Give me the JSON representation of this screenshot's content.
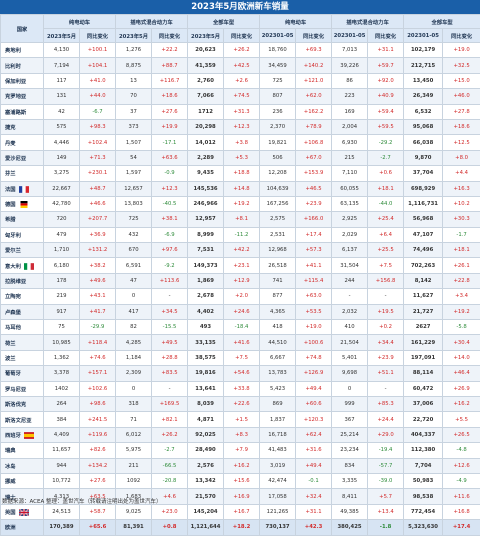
{
  "title": "2023年5月欧洲新车销量",
  "header": {
    "country_label": "国家",
    "groups": [
      "纯电动车",
      "插电式混合动力车",
      "全部车型",
      "纯电动车",
      "插电式混合动力车",
      "全部车型"
    ],
    "subs": [
      "2023年5月",
      "同比变化",
      "2023年5月",
      "同比变化",
      "2023年5月",
      "同比变化",
      "202301-05",
      "同比变化",
      "202301-05",
      "同比变化",
      "202301-05",
      "同比变化"
    ]
  },
  "colors": {
    "title_bg": "#1a5fa8",
    "increase": "#d22a2a",
    "decrease": "#2e8b3a"
  },
  "rows": [
    {
      "country": "奥地利",
      "c": [
        "4,130",
        "+100.1",
        "1,276",
        "+22.2",
        "20,623",
        "+26.2",
        "18,760",
        "+69.3",
        "7,013",
        "+31.1",
        "102,179",
        "+19.0"
      ]
    },
    {
      "country": "比利时",
      "c": [
        "7,194",
        "+104.1",
        "8,875",
        "+88.7",
        "41,359",
        "+42.5",
        "34,459",
        "+140.2",
        "39,226",
        "+59.7",
        "212,715",
        "+32.5"
      ]
    },
    {
      "country": "保加利亚",
      "c": [
        "117",
        "+41.0",
        "13",
        "+116.7",
        "2,760",
        "+2.6",
        "725",
        "+121.0",
        "86",
        "+92.0",
        "13,450",
        "+15.0"
      ]
    },
    {
      "country": "克罗地亚",
      "c": [
        "131",
        "+44.0",
        "70",
        "+18.6",
        "7,066",
        "+74.5",
        "807",
        "+62.0",
        "223",
        "+40.9",
        "26,349",
        "+46.0"
      ]
    },
    {
      "country": "塞浦路斯",
      "c": [
        "42",
        "-6.7",
        "37",
        "+27.6",
        "1712",
        "+31.3",
        "236",
        "+162.2",
        "169",
        "+59.4",
        "6,532",
        "+27.8"
      ]
    },
    {
      "country": "捷克",
      "c": [
        "575",
        "+98.3",
        "373",
        "+19.9",
        "20,298",
        "+12.3",
        "2,370",
        "+78.9",
        "2,004",
        "+59.5",
        "95,068",
        "+18.6"
      ]
    },
    {
      "country": "丹麦",
      "c": [
        "4,446",
        "+102.4",
        "1,507",
        "-17.1",
        "14,012",
        "+3.8",
        "19,821",
        "+106.8",
        "6,930",
        "-29.2",
        "66,038",
        "+12.5"
      ]
    },
    {
      "country": "爱沙尼亚",
      "c": [
        "149",
        "+71.3",
        "54",
        "+63.6",
        "2,289",
        "+5.3",
        "506",
        "+67.0",
        "215",
        "-2.7",
        "9,870",
        "+8.0"
      ]
    },
    {
      "country": "芬兰",
      "c": [
        "3,275",
        "+230.1",
        "1,597",
        "-0.9",
        "9,435",
        "+18.8",
        "12,208",
        "+153.9",
        "7,110",
        "+0.6",
        "37,704",
        "+4.4"
      ]
    },
    {
      "country": "法国",
      "flag": "fr",
      "c": [
        "22,667",
        "+48.7",
        "12,657",
        "+12.3",
        "145,536",
        "+14.8",
        "104,639",
        "+46.5",
        "60,055",
        "+18.1",
        "698,929",
        "+16.3"
      ]
    },
    {
      "country": "德国",
      "flag": "de",
      "c": [
        "42,780",
        "+46.6",
        "13,803",
        "-40.5",
        "246,966",
        "+19.2",
        "167,256",
        "+23.9",
        "63,135",
        "-44.0",
        "1,116,731",
        "+10.2"
      ]
    },
    {
      "country": "希腊",
      "c": [
        "720",
        "+207.7",
        "725",
        "+38.1",
        "12,957",
        "+8.1",
        "2,575",
        "+166.0",
        "2,925",
        "+25.4",
        "56,968",
        "+30.3"
      ]
    },
    {
      "country": "匈牙利",
      "c": [
        "479",
        "+36.9",
        "432",
        "-6.9",
        "8,999",
        "-11.2",
        "2,531",
        "+17.4",
        "2,029",
        "+6.4",
        "47,107",
        "-1.7"
      ]
    },
    {
      "country": "爱尔兰",
      "c": [
        "1,710",
        "+131.2",
        "670",
        "+97.6",
        "7,531",
        "+42.2",
        "12,968",
        "+57.3",
        "6,137",
        "+25.5",
        "74,496",
        "+18.1"
      ]
    },
    {
      "country": "意大利",
      "flag": "it",
      "c": [
        "6,180",
        "+38.2",
        "6,591",
        "-9.2",
        "149,373",
        "+23.1",
        "26,518",
        "+41.1",
        "31,504",
        "+7.5",
        "702,263",
        "+26.1"
      ]
    },
    {
      "country": "拉脱维亚",
      "c": [
        "178",
        "+49.6",
        "47",
        "+113.6",
        "1,869",
        "+12.9",
        "741",
        "+115.4",
        "244",
        "+156.8",
        "8,142",
        "+22.8"
      ]
    },
    {
      "country": "立陶宛",
      "c": [
        "219",
        "+43.1",
        "0",
        "-",
        "2,678",
        "+2.0",
        "877",
        "+63.0",
        "-",
        "-",
        "11,627",
        "+3.4"
      ]
    },
    {
      "country": "卢森堡",
      "c": [
        "917",
        "+41.7",
        "417",
        "+34.5",
        "4,402",
        "+24.6",
        "4,365",
        "+53.5",
        "2,032",
        "+19.5",
        "21,727",
        "+19.2"
      ]
    },
    {
      "country": "马耳他",
      "c": [
        "75",
        "-29.9",
        "82",
        "-15.5",
        "493",
        "-18.4",
        "418",
        "+19.0",
        "410",
        "+0.2",
        "2627",
        "-5.8"
      ]
    },
    {
      "country": "荷兰",
      "c": [
        "10,985",
        "+118.4",
        "4,285",
        "+49.5",
        "33,135",
        "+41.6",
        "44,510",
        "+100.6",
        "21,504",
        "+34.4",
        "161,229",
        "+30.4"
      ]
    },
    {
      "country": "波兰",
      "c": [
        "1,362",
        "+74.6",
        "1,184",
        "+28.8",
        "38,575",
        "+7.5",
        "6,667",
        "+74.8",
        "5,401",
        "+23.9",
        "197,091",
        "+14.0"
      ]
    },
    {
      "country": "葡萄牙",
      "c": [
        "3,378",
        "+157.1",
        "2,309",
        "+83.5",
        "19,816",
        "+54.6",
        "13,783",
        "+126.9",
        "9,698",
        "+51.1",
        "88,114",
        "+46.4"
      ]
    },
    {
      "country": "罗马尼亚",
      "c": [
        "1402",
        "+102.6",
        "0",
        "-",
        "13,641",
        "+33.8",
        "5,423",
        "+49.4",
        "0",
        "-",
        "60,472",
        "+26.9"
      ]
    },
    {
      "country": "斯洛伐克",
      "c": [
        "264",
        "+98.6",
        "318",
        "+169.5",
        "8,039",
        "+22.6",
        "869",
        "+60.6",
        "999",
        "+85.3",
        "37,006",
        "+16.2"
      ]
    },
    {
      "country": "斯洛文尼亚",
      "c": [
        "384",
        "+241.5",
        "71",
        "+82.1",
        "4,871",
        "+1.5",
        "1,837",
        "+120.3",
        "367",
        "+24.4",
        "22,720",
        "+5.5"
      ]
    },
    {
      "country": "西班牙",
      "flag": "es",
      "c": [
        "4,409",
        "+119.6",
        "6,012",
        "+26.2",
        "92,025",
        "+8.3",
        "16,718",
        "+62.4",
        "25,214",
        "+29.0",
        "404,337",
        "+26.5"
      ]
    },
    {
      "country": "瑞典",
      "c": [
        "11,657",
        "+82.6",
        "5,975",
        "-2.7",
        "28,490",
        "+7.9",
        "41,483",
        "+31.6",
        "23,234",
        "-19.4",
        "112,380",
        "-4.8"
      ]
    },
    {
      "country": "冰岛",
      "c": [
        "944",
        "+134.2",
        "211",
        "-66.5",
        "2,576",
        "+16.2",
        "3,019",
        "+49.4",
        "834",
        "-57.7",
        "7,704",
        "+12.6"
      ]
    },
    {
      "country": "挪威",
      "c": [
        "10,772",
        "+27.6",
        "1092",
        "-20.8",
        "13,342",
        "+15.6",
        "42,474",
        "-0.1",
        "3,335",
        "-39.0",
        "50,983",
        "-4.9"
      ]
    },
    {
      "country": "瑞士",
      "c": [
        "4,313",
        "+63.5",
        "1,683",
        "+4.6",
        "21,570",
        "+16.9",
        "17,058",
        "+32.4",
        "8,411",
        "+5.7",
        "98,538",
        "+11.6"
      ]
    },
    {
      "country": "英国",
      "flag": "gb",
      "c": [
        "24,513",
        "+58.7",
        "9,025",
        "+23.0",
        "145,204",
        "+16.7",
        "121,265",
        "+31.1",
        "49,385",
        "+13.4",
        "772,454",
        "+16.8"
      ]
    },
    {
      "country": "欧洲",
      "summary": true,
      "c": [
        "170,389",
        "+65.6",
        "81,391",
        "+0.8",
        "1,121,644",
        "+18.2",
        "730,137",
        "+42.3",
        "380,425",
        "-1.8",
        "5,323,630",
        "+17.4"
      ]
    }
  ],
  "footer": "数据来源：ACEA  整理：盖世汽车（转载请注明出处为盖世汽车）"
}
